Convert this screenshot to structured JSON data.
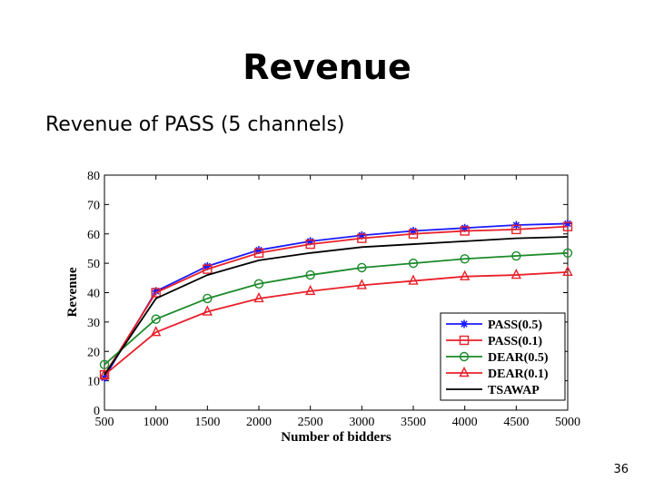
{
  "slide": {
    "title": "Revenue",
    "subtitle": "Revenue of PASS (5 channels)",
    "page_number": "36"
  },
  "chart_data": {
    "type": "line",
    "title": "",
    "xlabel": "Number of bidders",
    "ylabel": "Revenue",
    "x": [
      500,
      1000,
      1500,
      2000,
      2500,
      3000,
      3500,
      4000,
      4500,
      5000
    ],
    "xlim": [
      500,
      5000
    ],
    "ylim": [
      0,
      80
    ],
    "yticks": [
      0,
      10,
      20,
      30,
      40,
      50,
      60,
      70,
      80
    ],
    "grid": false,
    "legend_position": "bottom-right",
    "series": [
      {
        "name": "PASS(0.5)",
        "color": "#1a1aff",
        "marker": "star",
        "values": [
          11,
          40.5,
          49,
          54.5,
          57.5,
          59.5,
          61,
          62,
          63,
          63.5
        ]
      },
      {
        "name": "PASS(0.1)",
        "color": "#e8202a",
        "marker": "square",
        "values": [
          12,
          40,
          48,
          53.5,
          56.5,
          58.5,
          60,
          61,
          61.5,
          62.5
        ]
      },
      {
        "name": "DEAR(0.5)",
        "color": "#1b8a2a",
        "marker": "circle",
        "values": [
          15.5,
          31,
          38,
          43,
          46,
          48.5,
          50,
          51.5,
          52.5,
          53.5
        ]
      },
      {
        "name": "DEAR(0.1)",
        "color": "#e8202a",
        "marker": "triangle",
        "values": [
          12,
          26.5,
          33.5,
          38,
          40.5,
          42.5,
          44,
          45.5,
          46,
          47
        ]
      },
      {
        "name": "TSAWAP",
        "color": "#000000",
        "marker": "none",
        "values": [
          12,
          38,
          46,
          51,
          53.5,
          55.5,
          56.5,
          57.5,
          58.5,
          59
        ]
      }
    ]
  }
}
